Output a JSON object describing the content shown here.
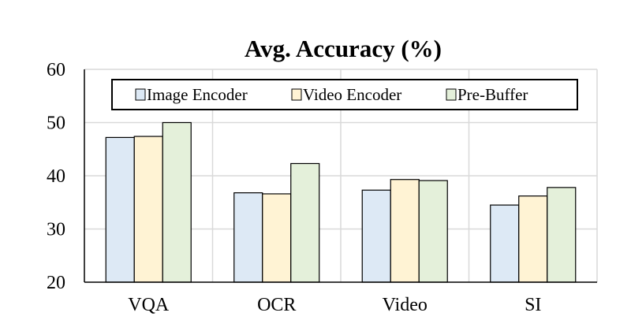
{
  "chart_data": {
    "type": "bar",
    "title": "Avg. Accuracy (%)",
    "xlabel": "",
    "ylabel": "",
    "categories": [
      "VQA",
      "OCR",
      "Video",
      "SI"
    ],
    "series": [
      {
        "name": "Image Encoder",
        "values": [
          47.2,
          36.8,
          37.3,
          34.5
        ]
      },
      {
        "name": "Video Encoder",
        "values": [
          47.4,
          36.6,
          39.3,
          36.2
        ]
      },
      {
        "name": "Pre-Buffer",
        "values": [
          50.0,
          42.3,
          39.1,
          37.8
        ]
      }
    ],
    "ylim": [
      20,
      60
    ],
    "yticks": [
      20,
      30,
      40,
      50,
      60
    ],
    "grid": true,
    "legend_position": "top",
    "colors": {
      "Image Encoder": "#dde9f5",
      "Video Encoder": "#fff3d4",
      "Pre-Buffer": "#e4f0da",
      "bar_stroke": "#000000",
      "grid": "#d9d9d9"
    }
  }
}
